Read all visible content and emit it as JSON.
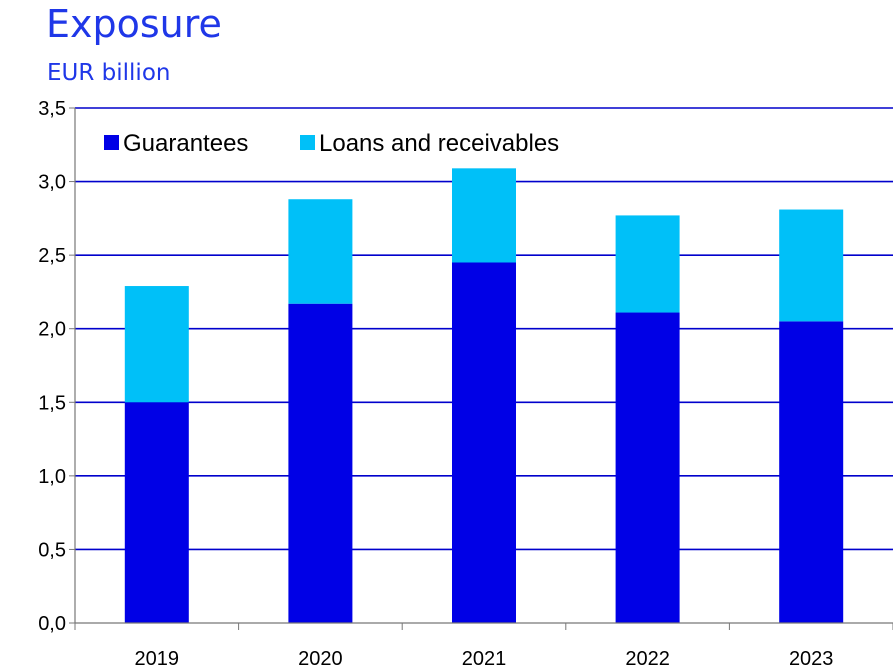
{
  "chart_data": {
    "type": "bar",
    "stacked": true,
    "title": "Exposure",
    "subtitle": "EUR billion",
    "categories": [
      "2019",
      "2020",
      "2021",
      "2022",
      "2023"
    ],
    "series": [
      {
        "name": "Guarantees",
        "color": "#0000e6",
        "values": [
          1.5,
          2.17,
          2.45,
          2.11,
          2.05
        ]
      },
      {
        "name": "Loans and receivables",
        "color": "#00c0f8",
        "values": [
          0.79,
          0.71,
          0.64,
          0.66,
          0.76
        ]
      }
    ],
    "ylim": [
      0,
      3.5
    ],
    "yticks": [
      "0,0",
      "0,5",
      "1,0",
      "1,5",
      "2,0",
      "2,5",
      "3,0",
      "3,5"
    ],
    "grid": true,
    "gridline_color": "#0000cc",
    "legend_position": "top-left"
  }
}
